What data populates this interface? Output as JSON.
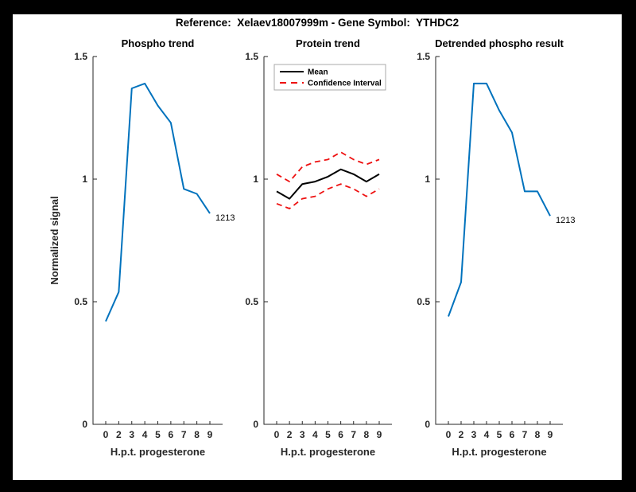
{
  "figure": {
    "title": "Reference:  Xelaev18007999m - Gene Symbol:  YTHDC2",
    "background": "#000000",
    "canvas_background": "#ffffff",
    "axis_color": "#262626",
    "accent_blue": "#0072BD",
    "accent_red": "#EE1111",
    "accent_black": "#000000"
  },
  "chart_data": [
    {
      "type": "line",
      "title": "Phospho trend",
      "xlabel": "H.p.t. progesterone",
      "ylabel": "Normalized signal",
      "categories": [
        "0",
        "2",
        "3",
        "4",
        "5",
        "6",
        "7",
        "8",
        "9"
      ],
      "ylim": [
        0,
        1.5
      ],
      "yticks": [
        0,
        0.5,
        1,
        1.5
      ],
      "ytick_labels": [
        "0",
        "0.5",
        "1",
        "1.5"
      ],
      "grid": false,
      "series": [
        {
          "name": "Phospho trend",
          "color": "#0072BD",
          "style": "solid",
          "values": [
            0.42,
            0.54,
            1.37,
            1.39,
            1.3,
            1.23,
            0.96,
            0.94,
            0.86
          ]
        }
      ],
      "end_label": "1213",
      "legend": null
    },
    {
      "type": "line",
      "title": "Protein trend",
      "xlabel": "H.p.t. progesterone",
      "ylabel": "",
      "categories": [
        "0",
        "2",
        "3",
        "4",
        "5",
        "6",
        "7",
        "8",
        "9"
      ],
      "ylim": [
        0,
        1.5
      ],
      "yticks": [
        0,
        0.5,
        1,
        1.5
      ],
      "ytick_labels": [
        "0",
        "0.5",
        "1",
        "1.5"
      ],
      "grid": false,
      "series": [
        {
          "name": "Mean",
          "color": "#000000",
          "style": "solid",
          "values": [
            0.95,
            0.92,
            0.98,
            0.99,
            1.01,
            1.04,
            1.02,
            0.99,
            1.02
          ]
        },
        {
          "name": "Confidence Interval upper",
          "color": "#EE1111",
          "style": "dashed",
          "values": [
            1.02,
            0.99,
            1.05,
            1.07,
            1.08,
            1.11,
            1.08,
            1.06,
            1.08
          ]
        },
        {
          "name": "Confidence Interval lower",
          "color": "#EE1111",
          "style": "dashed",
          "values": [
            0.9,
            0.88,
            0.92,
            0.93,
            0.96,
            0.98,
            0.96,
            0.93,
            0.96
          ]
        }
      ],
      "end_label": null,
      "legend": {
        "position": "northwest",
        "entries": [
          {
            "label": "Mean",
            "color": "#000000",
            "style": "solid"
          },
          {
            "label": "Confidence Interval",
            "color": "#EE1111",
            "style": "dashed"
          }
        ]
      }
    },
    {
      "type": "line",
      "title": "Detrended phospho result",
      "xlabel": "H.p.t. progesterone",
      "ylabel": "",
      "categories": [
        "0",
        "2",
        "3",
        "4",
        "5",
        "6",
        "7",
        "8",
        "9"
      ],
      "ylim": [
        0,
        1.5
      ],
      "yticks": [
        0,
        0.5,
        1,
        1.5
      ],
      "ytick_labels": [
        "0",
        "0.5",
        "1",
        "1.5"
      ],
      "grid": false,
      "series": [
        {
          "name": "Detrended phospho",
          "color": "#0072BD",
          "style": "solid",
          "values": [
            0.44,
            0.58,
            1.39,
            1.39,
            1.28,
            1.19,
            0.95,
            0.95,
            0.85
          ]
        }
      ],
      "end_label": "1213",
      "legend": null
    }
  ]
}
